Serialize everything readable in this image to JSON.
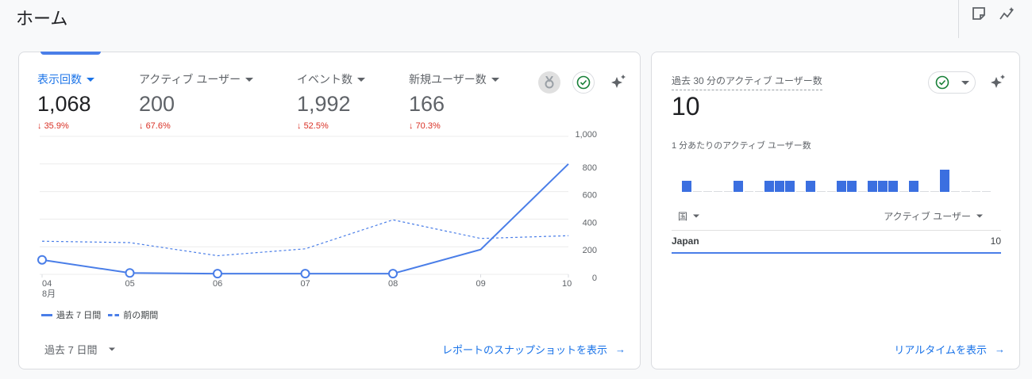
{
  "page": {
    "title": "ホーム",
    "icons": [
      "note-icon",
      "insights-icon"
    ]
  },
  "overview": {
    "metrics": [
      {
        "label": "表示回数",
        "value": "1,068",
        "change": "35.9%",
        "active": true
      },
      {
        "label": "アクティブ ユーザー",
        "value": "200",
        "change": "67.6%",
        "active": false
      },
      {
        "label": "イベント数",
        "value": "1,992",
        "change": "52.5%",
        "active": false
      },
      {
        "label": "新規ユーザー数",
        "value": "166",
        "change": "70.3%",
        "active": false
      }
    ],
    "change_arrow": "↓",
    "legend": {
      "current": "過去 7 日間",
      "previous": "前の期間"
    },
    "date_range": "過去 7 日間",
    "link": "レポートのスナップショットを表示",
    "colors": {
      "accent": "#1a73e8",
      "line": "#4a7ee8",
      "negative": "#d93025"
    }
  },
  "chart_data": {
    "type": "line",
    "categories": [
      "04",
      "05",
      "06",
      "07",
      "08",
      "09",
      "10"
    ],
    "x_sublabel": "8月",
    "ylim": [
      0,
      1000
    ],
    "yticks": [
      "1,000",
      "800",
      "600",
      "400",
      "200",
      "0"
    ],
    "ytick_values": [
      1000,
      800,
      600,
      400,
      200,
      0
    ],
    "y_axis_side": "right",
    "grid": true,
    "series": [
      {
        "name": "過去 7 日間",
        "style": "solid",
        "values": [
          105,
          10,
          5,
          5,
          5,
          180,
          800
        ]
      },
      {
        "name": "前の期間",
        "style": "dashed",
        "values": [
          240,
          230,
          135,
          185,
          395,
          260,
          280
        ]
      }
    ]
  },
  "realtime": {
    "label": "過去 30 分のアクティブ ユーザー数",
    "value": "10",
    "sub_label": "1 分あたりのアクティブ ユーザー数",
    "per_minute": [
      1,
      0,
      0,
      0,
      0,
      1,
      0,
      0,
      1,
      1,
      1,
      0,
      1,
      0,
      0,
      1,
      1,
      0,
      1,
      1,
      1,
      0,
      1,
      0,
      0,
      2,
      0,
      0,
      0,
      0
    ],
    "col_country": "国",
    "col_users": "アクティブ ユーザー",
    "rows": [
      {
        "country": "Japan",
        "users": "10"
      }
    ],
    "link": "リアルタイムを表示"
  }
}
